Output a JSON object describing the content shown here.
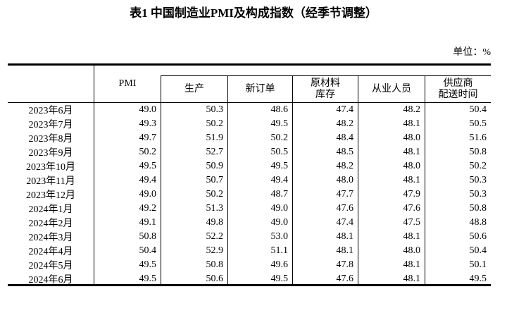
{
  "page": {
    "title": "表1 中国制造业PMI及构成指数（经季节调整）",
    "unit_label": "单位：%"
  },
  "table": {
    "pmi_header": "PMI",
    "sub_headers": [
      "生产",
      "新订单",
      "原材料\n库存",
      "从业人员",
      "供应商\n配送时间"
    ],
    "rows": [
      {
        "date": "2023年6月",
        "values": [
          "49.0",
          "50.3",
          "48.6",
          "47.4",
          "48.2",
          "50.4"
        ]
      },
      {
        "date": "2023年7月",
        "values": [
          "49.3",
          "50.2",
          "49.5",
          "48.2",
          "48.1",
          "50.5"
        ]
      },
      {
        "date": "2023年8月",
        "values": [
          "49.7",
          "51.9",
          "50.2",
          "48.4",
          "48.0",
          "51.6"
        ]
      },
      {
        "date": "2023年9月",
        "values": [
          "50.2",
          "52.7",
          "50.5",
          "48.5",
          "48.1",
          "50.8"
        ]
      },
      {
        "date": "2023年10月",
        "values": [
          "49.5",
          "50.9",
          "49.5",
          "48.2",
          "48.0",
          "50.2"
        ]
      },
      {
        "date": "2023年11月",
        "values": [
          "49.4",
          "50.7",
          "49.4",
          "48.0",
          "48.1",
          "50.3"
        ]
      },
      {
        "date": "2023年12月",
        "values": [
          "49.0",
          "50.2",
          "48.7",
          "47.7",
          "47.9",
          "50.3"
        ]
      },
      {
        "date": "2024年1月",
        "values": [
          "49.2",
          "51.3",
          "49.0",
          "47.6",
          "47.6",
          "50.8"
        ]
      },
      {
        "date": "2024年2月",
        "values": [
          "49.1",
          "49.8",
          "49.0",
          "47.4",
          "47.5",
          "48.8"
        ]
      },
      {
        "date": "2024年3月",
        "values": [
          "50.8",
          "52.2",
          "53.0",
          "48.1",
          "48.1",
          "50.6"
        ]
      },
      {
        "date": "2024年4月",
        "values": [
          "50.4",
          "52.9",
          "51.1",
          "48.1",
          "48.0",
          "50.4"
        ]
      },
      {
        "date": "2024年5月",
        "values": [
          "49.5",
          "50.8",
          "49.6",
          "47.8",
          "48.1",
          "50.1"
        ]
      },
      {
        "date": "2024年6月",
        "values": [
          "49.5",
          "50.6",
          "49.5",
          "47.6",
          "48.1",
          "49.5"
        ]
      }
    ]
  },
  "colors": {
    "text": "#000000",
    "border": "#000000",
    "background": "#ffffff"
  }
}
